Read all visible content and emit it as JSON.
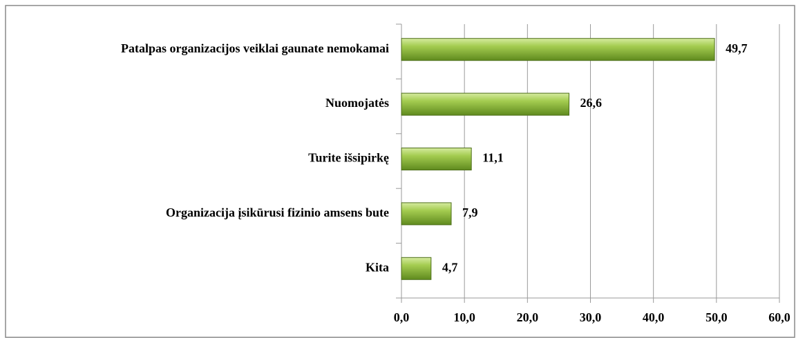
{
  "chart_data": {
    "type": "bar",
    "orientation": "horizontal",
    "categories": [
      "Patalpas organizacijos veiklai gaunate nemokamai",
      "Nuomojatės",
      "Turite išsipirkę",
      "Organizacija įsikūrusi fizinio amsens bute",
      "Kita"
    ],
    "values": [
      49.7,
      26.6,
      11.1,
      7.9,
      4.7
    ],
    "value_labels": [
      "49,7",
      "26,6",
      "11,1",
      "7,9",
      "4,7"
    ],
    "color": "#8fbc3a",
    "xlim": [
      0,
      60
    ],
    "xticks": [
      {
        "value": 0,
        "label": "0,0"
      },
      {
        "value": 10,
        "label": "10,0"
      },
      {
        "value": 20,
        "label": "20,0"
      },
      {
        "value": 30,
        "label": "30,0"
      },
      {
        "value": 40,
        "label": "40,0"
      },
      {
        "value": 50,
        "label": "50,0"
      },
      {
        "value": 60,
        "label": "60,0"
      }
    ],
    "grid": true
  }
}
